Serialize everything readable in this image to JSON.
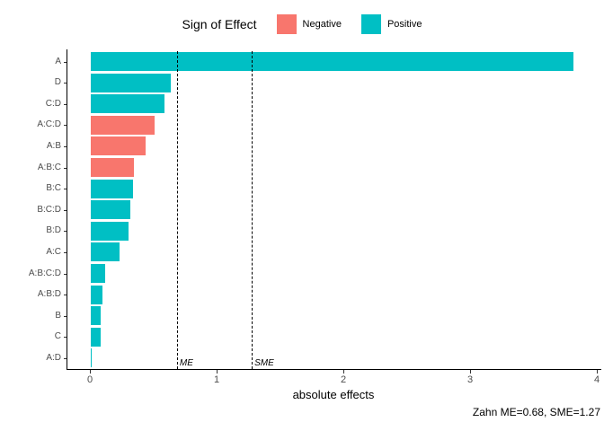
{
  "accent_colors": {
    "negative": "#F8766D",
    "positive": "#00BFC4"
  },
  "legend": {
    "title": "Sign of Effect",
    "entries": [
      {
        "label": "Negative",
        "color": "#F8766D"
      },
      {
        "label": "Positive",
        "color": "#00BFC4"
      }
    ],
    "position": "top"
  },
  "caption": "Zahn ME=0.68, SME=1.27",
  "chart_data": {
    "type": "bar",
    "orientation": "horizontal",
    "title": "",
    "xlabel": "absolute effects",
    "ylabel": "",
    "xlim": [
      0,
      4
    ],
    "xticks": [
      0,
      1,
      2,
      3,
      4
    ],
    "grid": false,
    "categories": [
      "A",
      "D",
      "C:D",
      "A:C:D",
      "A:B",
      "A:B:C",
      "B:C",
      "B:C:D",
      "B:D",
      "A:C",
      "A:B:C:D",
      "A:B:D",
      "B",
      "C",
      "A:D"
    ],
    "values": [
      3.81,
      0.63,
      0.58,
      0.5,
      0.43,
      0.34,
      0.33,
      0.31,
      0.3,
      0.23,
      0.11,
      0.09,
      0.08,
      0.08,
      0.01
    ],
    "signs": [
      "Positive",
      "Positive",
      "Positive",
      "Negative",
      "Negative",
      "Negative",
      "Positive",
      "Positive",
      "Positive",
      "Positive",
      "Positive",
      "Positive",
      "Positive",
      "Positive",
      "Positive"
    ],
    "series_name": "absolute effects",
    "reference_lines": [
      {
        "label": "ME",
        "value": 0.68
      },
      {
        "label": "SME",
        "value": 1.27
      }
    ]
  }
}
